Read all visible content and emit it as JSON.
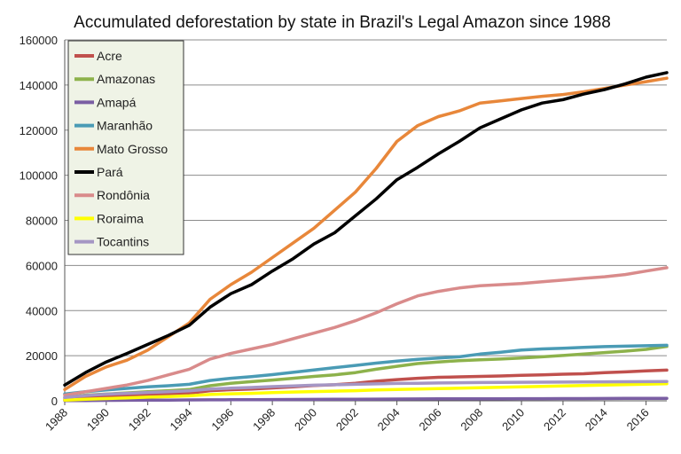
{
  "chart_data": {
    "type": "line",
    "title": "Accumulated deforestation by state in Brazil's Legal Amazon since 1988",
    "xlabel": "",
    "ylabel": "",
    "xlim": [
      1988,
      2017
    ],
    "ylim": [
      0,
      160000
    ],
    "x_ticks": [
      "1988",
      "1990",
      "1992",
      "1994",
      "1996",
      "1998",
      "2000",
      "2002",
      "2004",
      "2006",
      "2008",
      "2010",
      "2012",
      "2014",
      "2016"
    ],
    "y_ticks": [
      "0",
      "20000",
      "40000",
      "60000",
      "80000",
      "100000",
      "120000",
      "140000",
      "160000"
    ],
    "grid": "horizontal",
    "legend_position": "top-left",
    "x": [
      1988,
      1989,
      1990,
      1991,
      1992,
      1993,
      1994,
      1995,
      1996,
      1997,
      1998,
      1999,
      2000,
      2001,
      2002,
      2003,
      2004,
      2005,
      2006,
      2007,
      2008,
      2009,
      2010,
      2011,
      2012,
      2013,
      2014,
      2015,
      2016,
      2017
    ],
    "series": [
      {
        "name": "Acre",
        "color": "#c0504d",
        "values": [
          600,
          1200,
          1700,
          2100,
          2500,
          2900,
          3400,
          4500,
          4900,
          5200,
          5700,
          6200,
          6800,
          7100,
          7800,
          8700,
          9400,
          10000,
          10400,
          10600,
          10800,
          11000,
          11300,
          11500,
          11800,
          12000,
          12500,
          12800,
          13300,
          13600
        ]
      },
      {
        "name": "Amazonas",
        "color": "#8db24b",
        "values": [
          1500,
          2500,
          3000,
          3500,
          4000,
          4500,
          5000,
          6700,
          7800,
          8500,
          9200,
          10000,
          10800,
          11500,
          12500,
          14000,
          15300,
          16500,
          17200,
          17800,
          18200,
          18500,
          19000,
          19500,
          20100,
          20700,
          21400,
          22000,
          22800,
          24100
        ]
      },
      {
        "name": "Amapá",
        "color": "#7a5ea3",
        "values": [
          60,
          120,
          180,
          230,
          280,
          330,
          390,
          420,
          460,
          500,
          540,
          580,
          620,
          660,
          700,
          740,
          780,
          820,
          850,
          880,
          900,
          920,
          940,
          960,
          980,
          1000,
          1020,
          1050,
          1080,
          1100
        ]
      },
      {
        "name": "Maranhão",
        "color": "#4a9bb5",
        "values": [
          3000,
          4000,
          4800,
          5500,
          6200,
          6700,
          7300,
          9000,
          10000,
          10700,
          11600,
          12600,
          13700,
          14700,
          15700,
          16700,
          17600,
          18400,
          19000,
          19500,
          20700,
          21500,
          22500,
          23000,
          23300,
          23700,
          24000,
          24200,
          24400,
          24600
        ]
      },
      {
        "name": "Mato Grosso",
        "color": "#e8873a",
        "values": [
          5000,
          10800,
          15000,
          18000,
          22500,
          28500,
          34500,
          45000,
          51500,
          57000,
          63500,
          70000,
          76500,
          84500,
          92500,
          103000,
          115000,
          122000,
          126000,
          128500,
          132000,
          133000,
          134000,
          135000,
          135800,
          137000,
          138500,
          140000,
          141500,
          143000
        ]
      },
      {
        "name": "Pará",
        "color": "#000000",
        "values": [
          7000,
          12500,
          17200,
          21000,
          25000,
          29000,
          33500,
          41500,
          47500,
          51500,
          57500,
          63000,
          69500,
          74500,
          82000,
          89500,
          98000,
          103500,
          109500,
          115000,
          121000,
          125000,
          129000,
          132000,
          133500,
          136000,
          138000,
          140500,
          143500,
          145500
        ]
      },
      {
        "name": "Rondônia",
        "color": "#d98b8b",
        "values": [
          2500,
          4000,
          5500,
          7000,
          9000,
          11500,
          14000,
          18500,
          21000,
          23000,
          25000,
          27500,
          30000,
          32500,
          35500,
          39000,
          43000,
          46500,
          48500,
          50000,
          51000,
          51500,
          52000,
          52800,
          53500,
          54300,
          55000,
          56000,
          57500,
          59000
        ]
      },
      {
        "name": "Roraima",
        "color": "#ffff00",
        "values": [
          300,
          700,
          1000,
          1300,
          1600,
          1900,
          2200,
          2800,
          3100,
          3300,
          3600,
          3900,
          4100,
          4300,
          4500,
          4800,
          5000,
          5200,
          5400,
          5600,
          5800,
          6000,
          6200,
          6400,
          6600,
          6800,
          7000,
          7200,
          7400,
          7600
        ]
      },
      {
        "name": "Tocantins",
        "color": "#a596c4",
        "values": [
          1500,
          2300,
          2900,
          3300,
          3700,
          4000,
          4400,
          5200,
          5600,
          5900,
          6300,
          6600,
          6900,
          7100,
          7300,
          7500,
          7700,
          7800,
          7900,
          8000,
          8100,
          8150,
          8200,
          8250,
          8300,
          8350,
          8400,
          8450,
          8500,
          8550
        ]
      }
    ]
  }
}
